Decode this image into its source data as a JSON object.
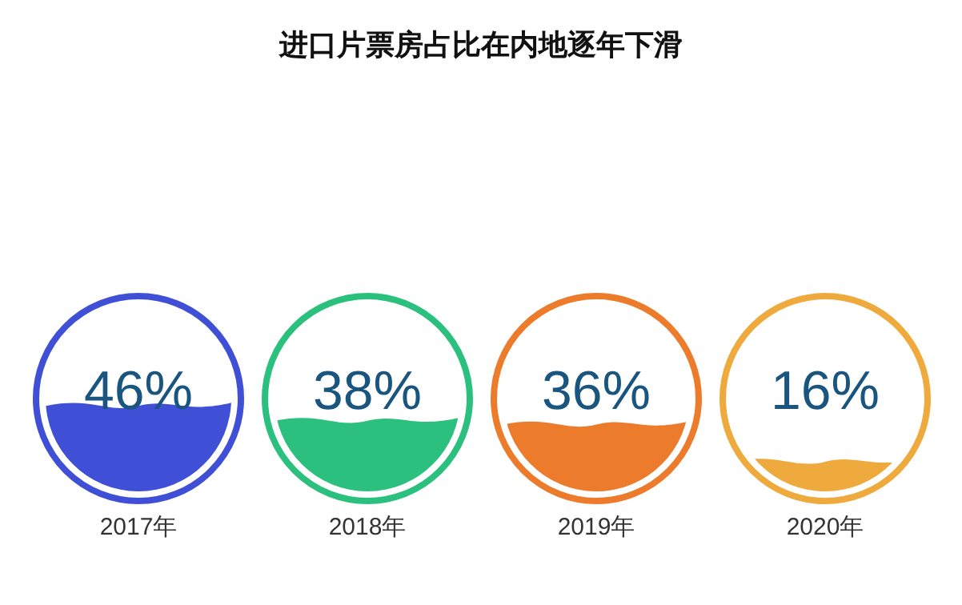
{
  "chart_data": [
    {
      "type": "other",
      "title": "进口片票房占比在内地逐年下滑",
      "categories": [
        "2017年"
      ],
      "values": [
        46
      ],
      "value_labels": [
        "46%"
      ],
      "colors": [
        "#3f4fd6"
      ]
    },
    {
      "type": "other",
      "categories": [
        "2018年"
      ],
      "values": [
        38
      ],
      "value_labels": [
        "38%"
      ],
      "colors": [
        "#2cc07e"
      ]
    },
    {
      "type": "other",
      "categories": [
        "2019年"
      ],
      "values": [
        36
      ],
      "value_labels": [
        "36%"
      ],
      "colors": [
        "#ec7b2c"
      ]
    },
    {
      "type": "other",
      "categories": [
        "2020年"
      ],
      "values": [
        16
      ],
      "value_labels": [
        "16%"
      ],
      "colors": [
        "#eeaa3c"
      ]
    }
  ]
}
